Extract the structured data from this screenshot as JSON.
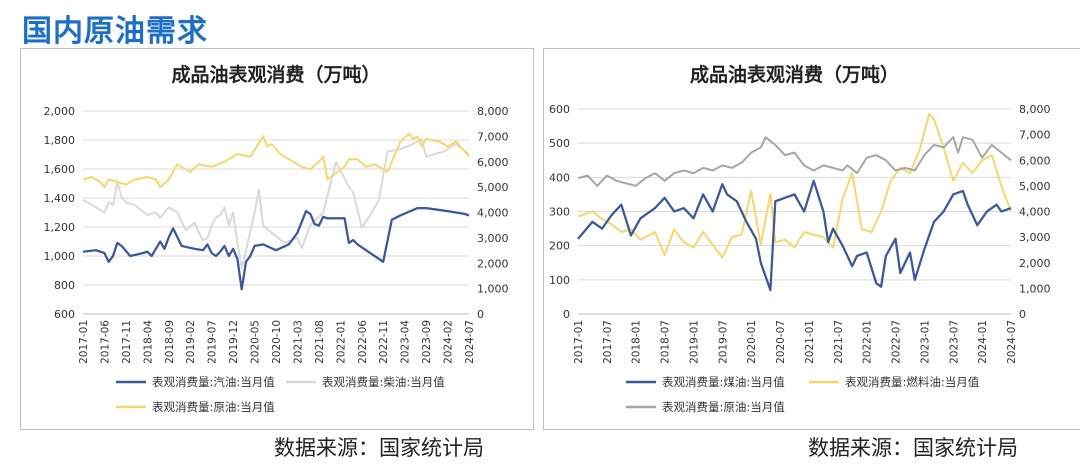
{
  "page_title": "国内原油需求",
  "charts": [
    {
      "source": "数据来源：国家统计局",
      "chart_data": {
        "type": "line",
        "title": "成品油表观消费（万吨）",
        "left_axis": {
          "ylim": [
            600,
            2000
          ],
          "ticks": [
            "600",
            "800",
            "1,000",
            "1,200",
            "1,400",
            "1,600",
            "1,800",
            "2,000"
          ]
        },
        "right_axis": {
          "ylim": [
            0,
            8000
          ],
          "ticks": [
            "0",
            "1,000",
            "2,000",
            "3,000",
            "4,000",
            "5,000",
            "6,000",
            "7,000",
            "8,000"
          ]
        },
        "x_ticks": [
          "2017-01",
          "2017-06",
          "2017-11",
          "2018-04",
          "2018-09",
          "2019-02",
          "2019-07",
          "2019-12",
          "2020-05",
          "2020-10",
          "2021-03",
          "2021-08",
          "2022-01",
          "2022-06",
          "2022-11",
          "2023-04",
          "2023-09",
          "2024-02",
          "2024-07"
        ],
        "grid": "horizontal",
        "legend_position": "bottom",
        "series": [
          {
            "name": "表观消费量:汽油:当月值",
            "axis": "left",
            "color": "#3c5a99",
            "x": [
              "2017-01",
              "2017-04",
              "2017-06",
              "2017-07",
              "2017-08",
              "2017-09",
              "2017-10",
              "2017-12",
              "2018-03",
              "2018-04",
              "2018-05",
              "2018-06",
              "2018-07",
              "2018-08",
              "2018-09",
              "2018-10",
              "2018-12",
              "2019-03",
              "2019-05",
              "2019-06",
              "2019-07",
              "2019-08",
              "2019-09",
              "2019-10",
              "2019-11",
              "2019-12",
              "2020-01",
              "2020-02",
              "2020-03",
              "2020-04",
              "2020-05",
              "2020-07",
              "2020-10",
              "2021-01",
              "2021-03",
              "2021-05",
              "2021-06",
              "2021-07",
              "2021-08",
              "2021-09",
              "2021-10",
              "2021-11",
              "2022-02",
              "2022-03",
              "2022-04",
              "2022-05",
              "2022-11",
              "2023-01",
              "2023-03",
              "2023-07",
              "2023-09",
              "2024-02",
              "2024-06",
              "2024-07"
            ],
            "y": [
              1030,
              1040,
              1020,
              960,
              1000,
              1090,
              1070,
              1000,
              1020,
              1030,
              1000,
              1050,
              1100,
              1050,
              1130,
              1190,
              1070,
              1050,
              1040,
              1080,
              1020,
              1000,
              1030,
              1070,
              1000,
              1050,
              980,
              770,
              960,
              1000,
              1070,
              1080,
              1040,
              1080,
              1160,
              1310,
              1290,
              1220,
              1210,
              1270,
              1260,
              1260,
              1260,
              1090,
              1110,
              1080,
              960,
              1250,
              1280,
              1330,
              1330,
              1310,
              1290,
              1280
            ]
          },
          {
            "name": "表观消费量:柴油:当月值",
            "axis": "right",
            "color": "#d9d9d9",
            "x": [
              "2017-01",
              "2017-04",
              "2017-06",
              "2017-07",
              "2017-08",
              "2017-09",
              "2017-10",
              "2017-11",
              "2018-01",
              "2018-04",
              "2018-06",
              "2018-07",
              "2018-09",
              "2018-11",
              "2019-01",
              "2019-03",
              "2019-04",
              "2019-05",
              "2019-06",
              "2019-07",
              "2019-08",
              "2019-09",
              "2019-10",
              "2019-11",
              "2019-12",
              "2020-01",
              "2020-02",
              "2020-03",
              "2020-05",
              "2020-06",
              "2020-07",
              "2020-09",
              "2020-12",
              "2021-03",
              "2021-04",
              "2021-06",
              "2021-09",
              "2021-12",
              "2022-03",
              "2022-04",
              "2022-06",
              "2022-08",
              "2022-10",
              "2022-12",
              "2023-03",
              "2023-06",
              "2023-08",
              "2023-09",
              "2024-01",
              "2024-04",
              "2024-07"
            ],
            "y": [
              4500,
              4200,
              4000,
              4400,
              4300,
              5200,
              4600,
              4400,
              4300,
              3900,
              4000,
              3800,
              4200,
              4000,
              3300,
              3600,
              3200,
              2900,
              3000,
              3500,
              3800,
              3900,
              4200,
              3500,
              4000,
              2800,
              1800,
              2500,
              4000,
              4900,
              3500,
              3200,
              2800,
              3000,
              2600,
              3500,
              4000,
              6000,
              5000,
              4800,
              3400,
              3900,
              4500,
              6400,
              6500,
              6700,
              6900,
              6200,
              6400,
              6700,
              6300
            ]
          },
          {
            "name": "表观消费量:原油:当月值",
            "axis": "right",
            "color": "#f5d76e",
            "x": [
              "2017-01",
              "2017-03",
              "2017-05",
              "2017-06",
              "2017-07",
              "2017-09",
              "2017-11",
              "2018-01",
              "2018-04",
              "2018-06",
              "2018-07",
              "2018-09",
              "2018-11",
              "2019-02",
              "2019-04",
              "2019-07",
              "2019-10",
              "2020-01",
              "2020-04",
              "2020-07",
              "2020-08",
              "2020-09",
              "2020-11",
              "2021-02",
              "2021-04",
              "2021-06",
              "2021-08",
              "2021-09",
              "2021-10",
              "2022-02",
              "2022-03",
              "2022-05",
              "2022-07",
              "2022-09",
              "2022-12",
              "2023-03",
              "2023-05",
              "2023-06",
              "2023-07",
              "2023-08",
              "2023-09",
              "2023-12",
              "2024-02",
              "2024-04",
              "2024-07"
            ],
            "y": [
              5300,
              5400,
              5200,
              5000,
              5300,
              5200,
              5100,
              5300,
              5400,
              5300,
              5000,
              5300,
              5900,
              5600,
              5900,
              5800,
              6000,
              6300,
              6200,
              7000,
              6600,
              6700,
              6300,
              6000,
              5800,
              5700,
              6000,
              6200,
              5300,
              5800,
              6100,
              6100,
              5800,
              5900,
              5600,
              6800,
              7100,
              6900,
              7000,
              6600,
              6900,
              6800,
              6600,
              6800,
              6200
            ]
          }
        ]
      }
    },
    {
      "source": "数据来源：国家统计局",
      "chart_data": {
        "type": "line",
        "title": "成品油表观消费（万吨）",
        "left_axis": {
          "ylim": [
            0,
            600
          ],
          "ticks": [
            "0",
            "100",
            "200",
            "300",
            "400",
            "500",
            "600"
          ]
        },
        "right_axis": {
          "ylim": [
            0,
            8000
          ],
          "ticks": [
            "0",
            "1,000",
            "2,000",
            "3,000",
            "4,000",
            "5,000",
            "6,000",
            "7,000",
            "8,000"
          ]
        },
        "x_ticks": [
          "2017-01",
          "2017-07",
          "2018-01",
          "2018-07",
          "2019-01",
          "2019-07",
          "2020-01",
          "2020-07",
          "2021-01",
          "2021-07",
          "2022-01",
          "2022-07",
          "2023-01",
          "2023-07",
          "2024-01",
          "2024-07"
        ],
        "grid": "horizontal",
        "legend_position": "bottom",
        "series": [
          {
            "name": "表观消费量:煤油:当月值",
            "axis": "left",
            "color": "#3c5a99",
            "x": [
              "2017-01",
              "2017-04",
              "2017-06",
              "2017-08",
              "2017-10",
              "2017-12",
              "2018-02",
              "2018-05",
              "2018-07",
              "2018-09",
              "2018-11",
              "2019-01",
              "2019-03",
              "2019-05",
              "2019-07",
              "2019-08",
              "2019-10",
              "2019-12",
              "2020-02",
              "2020-03",
              "2020-05",
              "2020-06",
              "2020-08",
              "2020-10",
              "2020-12",
              "2021-02",
              "2021-04",
              "2021-05",
              "2021-06",
              "2021-08",
              "2021-10",
              "2021-11",
              "2022-01",
              "2022-03",
              "2022-04",
              "2022-05",
              "2022-07",
              "2022-08",
              "2022-10",
              "2022-11",
              "2023-01",
              "2023-03",
              "2023-05",
              "2023-07",
              "2023-09",
              "2023-10",
              "2023-12",
              "2024-02",
              "2024-04",
              "2024-05",
              "2024-07"
            ],
            "y": [
              220,
              270,
              250,
              290,
              320,
              230,
              280,
              310,
              340,
              300,
              310,
              280,
              350,
              300,
              380,
              350,
              330,
              270,
              220,
              150,
              70,
              330,
              340,
              350,
              300,
              390,
              300,
              210,
              250,
              200,
              140,
              170,
              180,
              90,
              80,
              170,
              220,
              120,
              180,
              100,
              190,
              270,
              300,
              350,
              360,
              320,
              260,
              300,
              320,
              300,
              310
            ]
          },
          {
            "name": "表观消费量:燃料油:当月值",
            "axis": "right",
            "color": "#f5d76e",
            "x": [
              "2017-01",
              "2017-04",
              "2017-06",
              "2017-08",
              "2017-10",
              "2017-12",
              "2018-02",
              "2018-05",
              "2018-07",
              "2018-09",
              "2018-11",
              "2019-01",
              "2019-03",
              "2019-05",
              "2019-07",
              "2019-09",
              "2019-11",
              "2020-01",
              "2020-03",
              "2020-05",
              "2020-06",
              "2020-08",
              "2020-10",
              "2020-12",
              "2021-02",
              "2021-04",
              "2021-06",
              "2021-08",
              "2021-10",
              "2021-12",
              "2022-02",
              "2022-04",
              "2022-06",
              "2022-08",
              "2022-10",
              "2022-12",
              "2023-02",
              "2023-03",
              "2023-05",
              "2023-07",
              "2023-09",
              "2023-11",
              "2024-01",
              "2024-03",
              "2024-05",
              "2024-07"
            ],
            "y": [
              3800,
              4000,
              3700,
              3500,
              3200,
              3300,
              2900,
              3200,
              2300,
              3300,
              2800,
              2600,
              3200,
              2700,
              2200,
              3000,
              3100,
              4800,
              2700,
              4700,
              2800,
              2900,
              2600,
              3200,
              3100,
              3000,
              2600,
              4500,
              5500,
              3300,
              3200,
              4000,
              5200,
              5700,
              5500,
              6400,
              7800,
              7600,
              6500,
              5200,
              5900,
              5500,
              6000,
              6200,
              5000,
              4000
            ]
          },
          {
            "name": "表观消费量:原油:当月值",
            "axis": "right",
            "color": "#a6a6a6",
            "x": [
              "2017-01",
              "2017-03",
              "2017-05",
              "2017-07",
              "2017-09",
              "2017-11",
              "2018-01",
              "2018-03",
              "2018-05",
              "2018-07",
              "2018-09",
              "2018-11",
              "2019-01",
              "2019-03",
              "2019-05",
              "2019-07",
              "2019-09",
              "2019-11",
              "2020-01",
              "2020-03",
              "2020-04",
              "2020-06",
              "2020-08",
              "2020-10",
              "2020-12",
              "2021-02",
              "2021-04",
              "2021-06",
              "2021-08",
              "2021-09",
              "2021-11",
              "2022-01",
              "2022-03",
              "2022-05",
              "2022-07",
              "2022-09",
              "2022-11",
              "2023-01",
              "2023-03",
              "2023-05",
              "2023-07",
              "2023-08",
              "2023-09",
              "2023-11",
              "2024-01",
              "2024-03",
              "2024-05",
              "2024-07"
            ],
            "y": [
              5300,
              5400,
              5000,
              5400,
              5200,
              5100,
              5000,
              5300,
              5500,
              5200,
              5500,
              5600,
              5500,
              5700,
              5600,
              5800,
              5700,
              5900,
              6300,
              6500,
              6900,
              6600,
              6200,
              6300,
              5800,
              5600,
              5800,
              5700,
              5600,
              5800,
              5500,
              6100,
              6200,
              6000,
              5600,
              5700,
              5600,
              6200,
              6600,
              6500,
              6900,
              6300,
              6900,
              6800,
              6100,
              6600,
              6300,
              6000
            ]
          }
        ]
      }
    }
  ]
}
